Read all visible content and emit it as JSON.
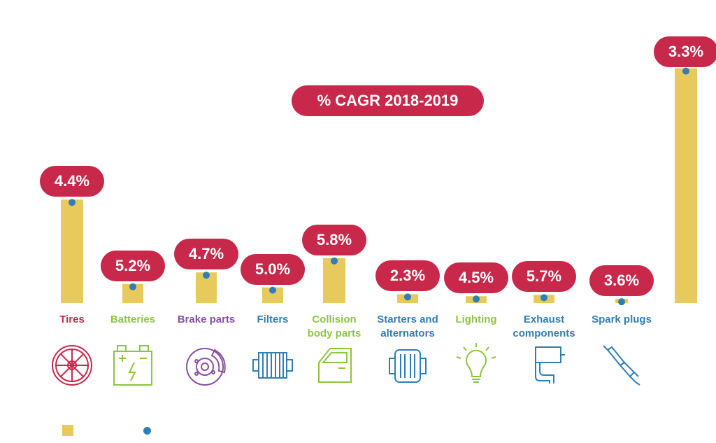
{
  "chart_data": {
    "type": "bar",
    "title": "% CAGR 2018-2019",
    "categories": [
      "Tires",
      "Batteries",
      "Brake parts",
      "Filters",
      "Collision body parts",
      "Starters and alternators",
      "Lighting",
      "Exhaust components",
      "Spark plugs",
      ""
    ],
    "category_lines": [
      [
        "Tires"
      ],
      [
        "Batteries"
      ],
      [
        "Brake parts"
      ],
      [
        "Filters"
      ],
      [
        "Collision",
        "body parts"
      ],
      [
        "Starters and",
        "alternators"
      ],
      [
        "Lighting"
      ],
      [
        "Exhaust",
        "components"
      ],
      [
        "Spark plugs"
      ],
      []
    ],
    "values": [
      15.2,
      2.8,
      4.5,
      2.3,
      6.6,
      1.3,
      1.0,
      1.2,
      0.6,
      34.5
    ],
    "cagr_labels": [
      "4.4%",
      "5.2%",
      "4.7%",
      "5.0%",
      "5.8%",
      "2.3%",
      "4.5%",
      "5.7%",
      "3.6%",
      "3.3%"
    ],
    "ylim": [
      0,
      36
    ],
    "label_colors": [
      "#c8284a",
      "#8cc63f",
      "#8a4fa0",
      "#2f7fb5",
      "#8cc63f",
      "#2f7fb5",
      "#8cc63f",
      "#2f7fb5",
      "#2f7fb5",
      "#2f7fb5"
    ],
    "icons": [
      "tire-icon",
      "battery-icon",
      "brake-disc-icon",
      "filter-icon",
      "car-door-icon",
      "alternator-icon",
      "light-bulb-icon",
      "exhaust-pipe-icon",
      "spark-plug-icon",
      ""
    ],
    "bar_color": "#e8c95c",
    "dot_color": "#2f7fb5",
    "pill_color": "#c8284a"
  }
}
